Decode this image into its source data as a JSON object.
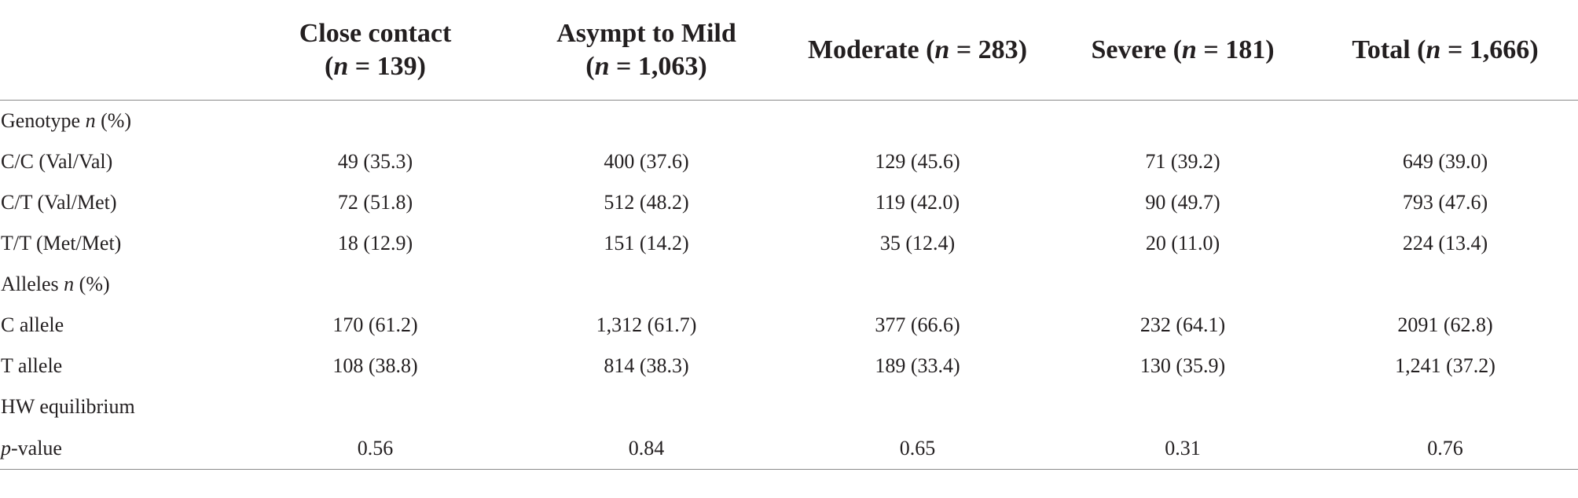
{
  "table": {
    "headers": [
      {
        "line1": "",
        "pre": "",
        "n": "",
        "eq": "",
        "post": ""
      },
      {
        "line1": "Close contact",
        "pre": "(",
        "n": "n",
        "eq": " = 139",
        "post": ")"
      },
      {
        "line1": "Asympt to Mild",
        "pre": "(",
        "n": "n",
        "eq": " = 1,063",
        "post": ")"
      },
      {
        "line1": "",
        "pre": "Moderate (",
        "n": "n",
        "eq": " = 283",
        "post": ")"
      },
      {
        "line1": "",
        "pre": "Severe (",
        "n": "n",
        "eq": " = 181",
        "post": ")"
      },
      {
        "line1": "",
        "pre": "Total (",
        "n": "n",
        "eq": " = 1,666",
        "post": ")"
      }
    ],
    "rows": [
      {
        "label_pre": "Genotype ",
        "label_ital": "n",
        "label_post": " (%)",
        "values": [
          "",
          "",
          "",
          "",
          ""
        ]
      },
      {
        "label_pre": "C/C (Val/Val)",
        "label_ital": "",
        "label_post": "",
        "values": [
          "49 (35.3)",
          "400 (37.6)",
          "129 (45.6)",
          "71 (39.2)",
          "649 (39.0)"
        ]
      },
      {
        "label_pre": "C/T (Val/Met)",
        "label_ital": "",
        "label_post": "",
        "values": [
          "72 (51.8)",
          "512 (48.2)",
          "119 (42.0)",
          "90 (49.7)",
          "793 (47.6)"
        ]
      },
      {
        "label_pre": "T/T (Met/Met)",
        "label_ital": "",
        "label_post": "",
        "values": [
          "18 (12.9)",
          "151 (14.2)",
          "35 (12.4)",
          "20 (11.0)",
          "224 (13.4)"
        ]
      },
      {
        "label_pre": "Alleles ",
        "label_ital": "n",
        "label_post": " (%)",
        "values": [
          "",
          "",
          "",
          "",
          ""
        ]
      },
      {
        "label_pre": "C allele",
        "label_ital": "",
        "label_post": "",
        "values": [
          "170 (61.2)",
          "1,312 (61.7)",
          "377 (66.6)",
          "232 (64.1)",
          "2091 (62.8)"
        ]
      },
      {
        "label_pre": "T allele",
        "label_ital": "",
        "label_post": "",
        "values": [
          "108 (38.8)",
          "814 (38.3)",
          "189 (33.4)",
          "130 (35.9)",
          "1,241 (37.2)"
        ]
      },
      {
        "label_pre": "HW equilibrium",
        "label_ital": "",
        "label_post": "",
        "values": [
          "",
          "",
          "",
          "",
          ""
        ]
      },
      {
        "label_pre": "",
        "label_ital": "p",
        "label_post": "-value",
        "values": [
          "0.56",
          "0.84",
          "0.65",
          "0.31",
          "0.76"
        ]
      }
    ]
  }
}
